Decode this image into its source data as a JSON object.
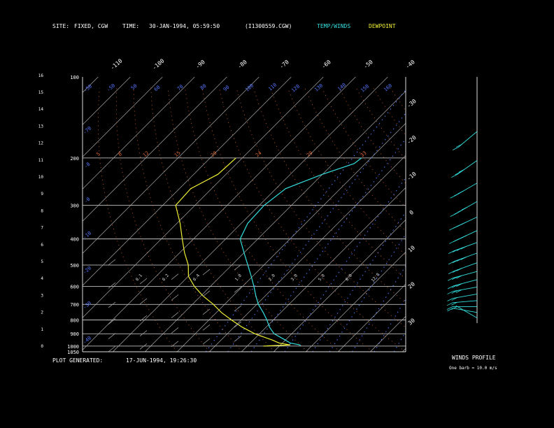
{
  "header": {
    "site_label": "SITE:",
    "site_value": "FIXED, CGW",
    "time_label": "TIME:",
    "time_value": "30-JAN-1994, 05:59:50",
    "file": "(I1300559.CGW)",
    "legend_temp": "TEMP/WINDS",
    "legend_dew": "DEWPOINT"
  },
  "footer": {
    "generated_label": "PLOT GENERATED:",
    "generated_value": "17-JUN-1994, 19:26:30"
  },
  "winds_profile": {
    "title": "WINDS PROFILE",
    "note": "One barb = 10.0 m/s"
  },
  "colors": {
    "temp": "#33dddd",
    "dewpoint": "#eeee33",
    "mixing_ratio": "#5577ff",
    "dry_adiabat": "#dd6633",
    "isotherm": "#bbbbbb",
    "isobar": "#dddddd"
  },
  "chart_data": {
    "type": "skew-t",
    "pressure_levels": [
      100,
      200,
      300,
      400,
      500,
      600,
      700,
      800,
      900,
      1000,
      1050
    ],
    "height_km_ticks": [
      0,
      1,
      2,
      3,
      4,
      5,
      6,
      7,
      8,
      9,
      10,
      11,
      12,
      13,
      14,
      15,
      16
    ],
    "isotherm_labels_top": [
      "-110",
      "-100",
      "-90",
      "-80",
      "-70",
      "-60",
      "-50",
      "-40"
    ],
    "isotherm_labels_right": [
      "-30",
      "-20",
      "-10",
      "0",
      "10",
      "20",
      "30"
    ],
    "theta_labels": [
      "5",
      "8",
      "12",
      "15",
      "20",
      "24",
      "29",
      "33"
    ],
    "mixing_ratio_labels": [
      "0.1",
      "0.2",
      "0.4",
      "1.0",
      "2.0",
      "3.0",
      "5.0",
      "8.0",
      "12.0"
    ],
    "temperature_profile": [
      {
        "p": 1000,
        "t": -13.5
      },
      {
        "p": 990,
        "t": -14.0
      },
      {
        "p": 975,
        "t": -17.5
      },
      {
        "p": 950,
        "t": -20.0
      },
      {
        "p": 900,
        "t": -25.5
      },
      {
        "p": 850,
        "t": -29.0
      },
      {
        "p": 800,
        "t": -32.0
      },
      {
        "p": 750,
        "t": -35.5
      },
      {
        "p": 700,
        "t": -39.5
      },
      {
        "p": 650,
        "t": -43.0
      },
      {
        "p": 600,
        "t": -46.5
      },
      {
        "p": 550,
        "t": -50.5
      },
      {
        "p": 500,
        "t": -55.0
      },
      {
        "p": 450,
        "t": -60.0
      },
      {
        "p": 400,
        "t": -65.5
      },
      {
        "p": 350,
        "t": -68.0
      },
      {
        "p": 300,
        "t": -68.5
      },
      {
        "p": 260,
        "t": -67.0
      },
      {
        "p": 230,
        "t": -60.0
      },
      {
        "p": 210,
        "t": -53.5
      },
      {
        "p": 200,
        "t": -53.0
      }
    ],
    "dewpoint_profile": [
      {
        "p": 1000,
        "t": -25.0
      },
      {
        "p": 990,
        "t": -17.0
      },
      {
        "p": 975,
        "t": -21.0
      },
      {
        "p": 950,
        "t": -24.0
      },
      {
        "p": 900,
        "t": -31.5
      },
      {
        "p": 850,
        "t": -37.5
      },
      {
        "p": 800,
        "t": -43.0
      },
      {
        "p": 750,
        "t": -48.5
      },
      {
        "p": 700,
        "t": -53.5
      },
      {
        "p": 650,
        "t": -59.5
      },
      {
        "p": 600,
        "t": -65.0
      },
      {
        "p": 550,
        "t": -70.0
      },
      {
        "p": 500,
        "t": -73.5
      },
      {
        "p": 450,
        "t": -78.5
      },
      {
        "p": 400,
        "t": -83.5
      },
      {
        "p": 350,
        "t": -89.0
      },
      {
        "p": 300,
        "t": -96.0
      },
      {
        "p": 260,
        "t": -96.5
      },
      {
        "p": 230,
        "t": -92.5
      },
      {
        "p": 200,
        "t": -92.0
      }
    ],
    "wind_profile": [
      {
        "p": 950,
        "speed": 5,
        "dir": 240
      },
      {
        "p": 900,
        "speed": 15,
        "dir": 260
      },
      {
        "p": 850,
        "speed": 20,
        "dir": 270
      },
      {
        "p": 800,
        "speed": 25,
        "dir": 275
      },
      {
        "p": 750,
        "speed": 25,
        "dir": 280
      },
      {
        "p": 700,
        "speed": 30,
        "dir": 280
      },
      {
        "p": 650,
        "speed": 30,
        "dir": 285
      },
      {
        "p": 600,
        "speed": 35,
        "dir": 285
      },
      {
        "p": 550,
        "speed": 35,
        "dir": 290
      },
      {
        "p": 500,
        "speed": 40,
        "dir": 290
      },
      {
        "p": 450,
        "speed": 40,
        "dir": 290
      },
      {
        "p": 400,
        "speed": 45,
        "dir": 295
      },
      {
        "p": 350,
        "speed": 45,
        "dir": 295
      },
      {
        "p": 300,
        "speed": 40,
        "dir": 300
      },
      {
        "p": 250,
        "speed": 35,
        "dir": 300
      },
      {
        "p": 200,
        "speed": 30,
        "dir": 305
      },
      {
        "p": 150,
        "speed": 25,
        "dir": 310
      }
    ]
  }
}
